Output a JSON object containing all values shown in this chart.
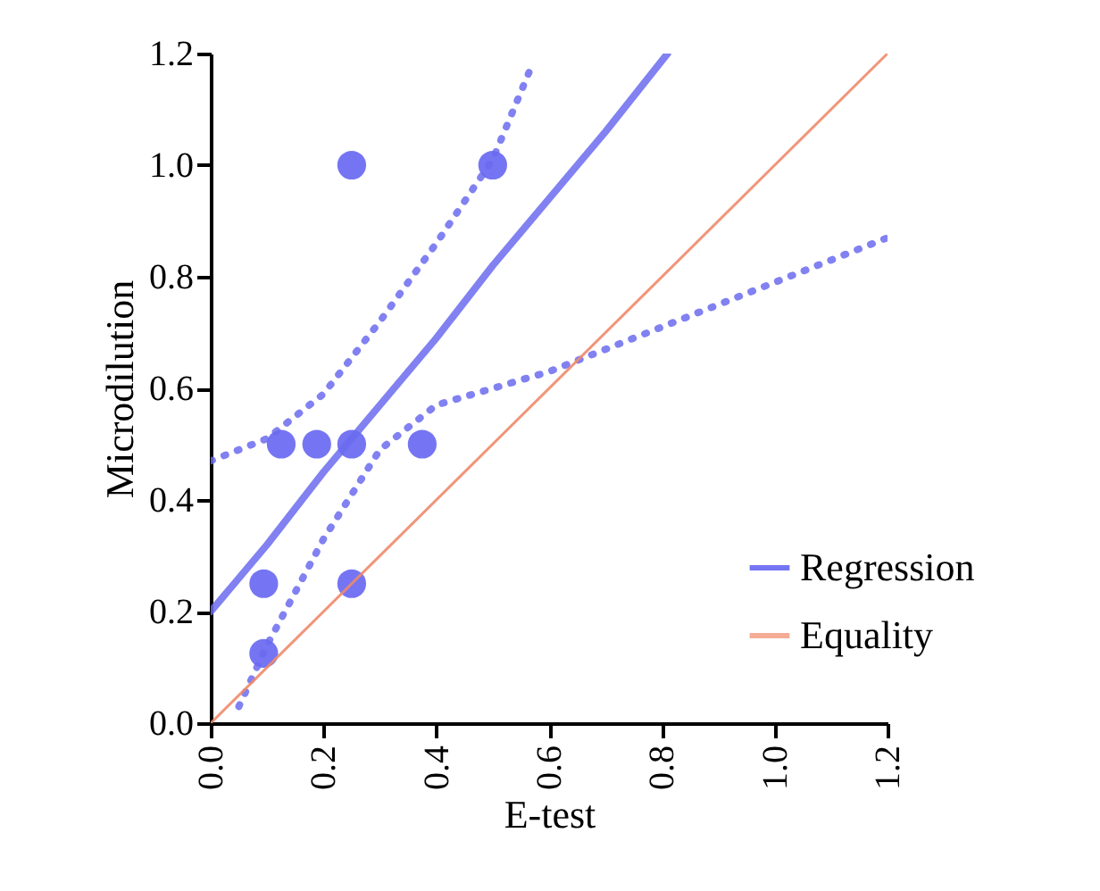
{
  "chart_data": {
    "type": "scatter",
    "xlabel": "E-test",
    "ylabel": "Microdilution",
    "xlim": [
      0,
      1.2
    ],
    "ylim": [
      0,
      1.2
    ],
    "xticks": [
      {
        "value": 0,
        "label": "0.0"
      },
      {
        "value": 0.2,
        "label": "0.2"
      },
      {
        "value": 0.4,
        "label": "0.4"
      },
      {
        "value": 0.6,
        "label": "0.6"
      },
      {
        "value": 0.8,
        "label": "0.8"
      },
      {
        "value": 1.0,
        "label": "1.0"
      },
      {
        "value": 1.2,
        "label": "1.2"
      }
    ],
    "yticks": [
      {
        "value": 0,
        "label": "0.0"
      },
      {
        "value": 0.2,
        "label": "0.2"
      },
      {
        "value": 0.4,
        "label": "0.4"
      },
      {
        "value": 0.6,
        "label": "0.6"
      },
      {
        "value": 0.8,
        "label": "0.8"
      },
      {
        "value": 1.0,
        "label": "1.0"
      },
      {
        "value": 1.2,
        "label": "1.2"
      }
    ],
    "grid": false,
    "legend": "bottom right",
    "series": [
      {
        "name": "Regression",
        "marker": "circle",
        "color": "#3b3bf0",
        "x": [
          0.094,
          0.094,
          0.25,
          0.25,
          0.5,
          0.125,
          0.188,
          0.25,
          0.375
        ],
        "values": [
          0.25,
          0.125,
          0.25,
          1.0,
          1.0,
          0.5,
          0.5,
          0.5,
          0.5
        ]
      },
      {
        "type": "line",
        "color": "#6b6bef",
        "x": [
          0,
          0.1,
          0.2,
          0.3,
          0.4,
          0.5,
          0.6,
          0.7,
          0.81
        ],
        "values": [
          0.2,
          0.32,
          0.45,
          0.57,
          0.69,
          0.82,
          0.94,
          1.06,
          1.2
        ]
      },
      {
        "type": "line",
        "color": "#6b6bef",
        "line_style": "dotted",
        "x": [
          0,
          0.1,
          0.2,
          0.3,
          0.4,
          0.5,
          0.57
        ],
        "values": [
          0.47,
          0.51,
          0.59,
          0.72,
          0.86,
          1.01,
          1.18
        ]
      },
      {
        "type": "line",
        "color": "#6b6bef",
        "line_style": "dotted",
        "x": [
          0.05,
          0.1,
          0.2,
          0.3,
          0.4,
          0.5,
          0.6,
          0.7,
          0.8,
          1.0,
          1.2
        ],
        "values": [
          0.03,
          0.14,
          0.33,
          0.49,
          0.57,
          0.6,
          0.63,
          0.67,
          0.71,
          0.79,
          0.87
        ]
      },
      {
        "name": "Equality",
        "type": "line",
        "color": "#f08a6a",
        "x": [
          0,
          1.2
        ],
        "values": [
          0,
          1.2
        ]
      }
    ]
  }
}
